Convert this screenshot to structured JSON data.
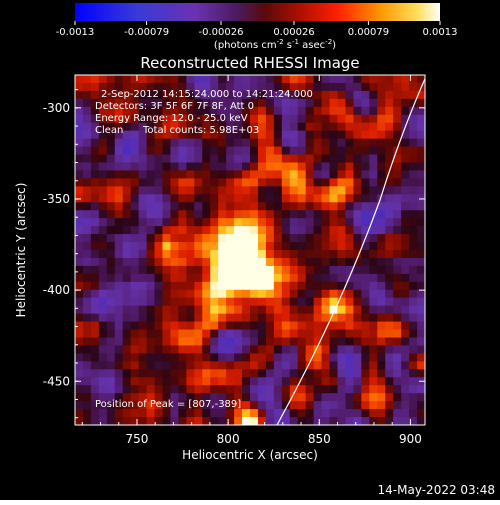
{
  "colorbar": {
    "ticks": [
      -0.0013,
      -0.00079,
      -0.00026,
      0.00026,
      0.00079,
      0.0013
    ],
    "tick_labels": [
      "-0.0013",
      "-0.00079",
      "-0.00026",
      "0.00026",
      "0.00079",
      "0.0013"
    ],
    "range": [
      -0.0013,
      0.0013
    ],
    "units_main": "(photons cm",
    "units_sup1": "-2",
    "units_mid": " s",
    "units_sup2": "-1",
    "units_end": " asec",
    "units_sup3": "-2",
    "units_close": ")"
  },
  "chart_data": {
    "type": "heatmap",
    "title": "Reconstructed RHESSI Image",
    "xlabel": "Heliocentric X (arcsec)",
    "ylabel": "Heliocentric Y (arcsec)",
    "xlim": [
      716,
      908
    ],
    "ylim": [
      -474,
      -282
    ],
    "x_ticks": [
      750,
      800,
      850,
      900
    ],
    "y_ticks": [
      -300,
      -350,
      -400,
      -450
    ],
    "peak": [
      807,
      -389
    ],
    "info_lines": [
      "2-Sep-2012 14:15:24.000 to 14:21:24.000",
      "Detectors: 3F 5F 6F 7F 8F, Att 0",
      "Energy Range: 12.0 - 25.0 keV",
      "Clean",
      "Total counts: 5.98E+03"
    ],
    "peak_label": "Position of Peak = [807,-389]"
  },
  "timestamp": "14-May-2022 03:48"
}
